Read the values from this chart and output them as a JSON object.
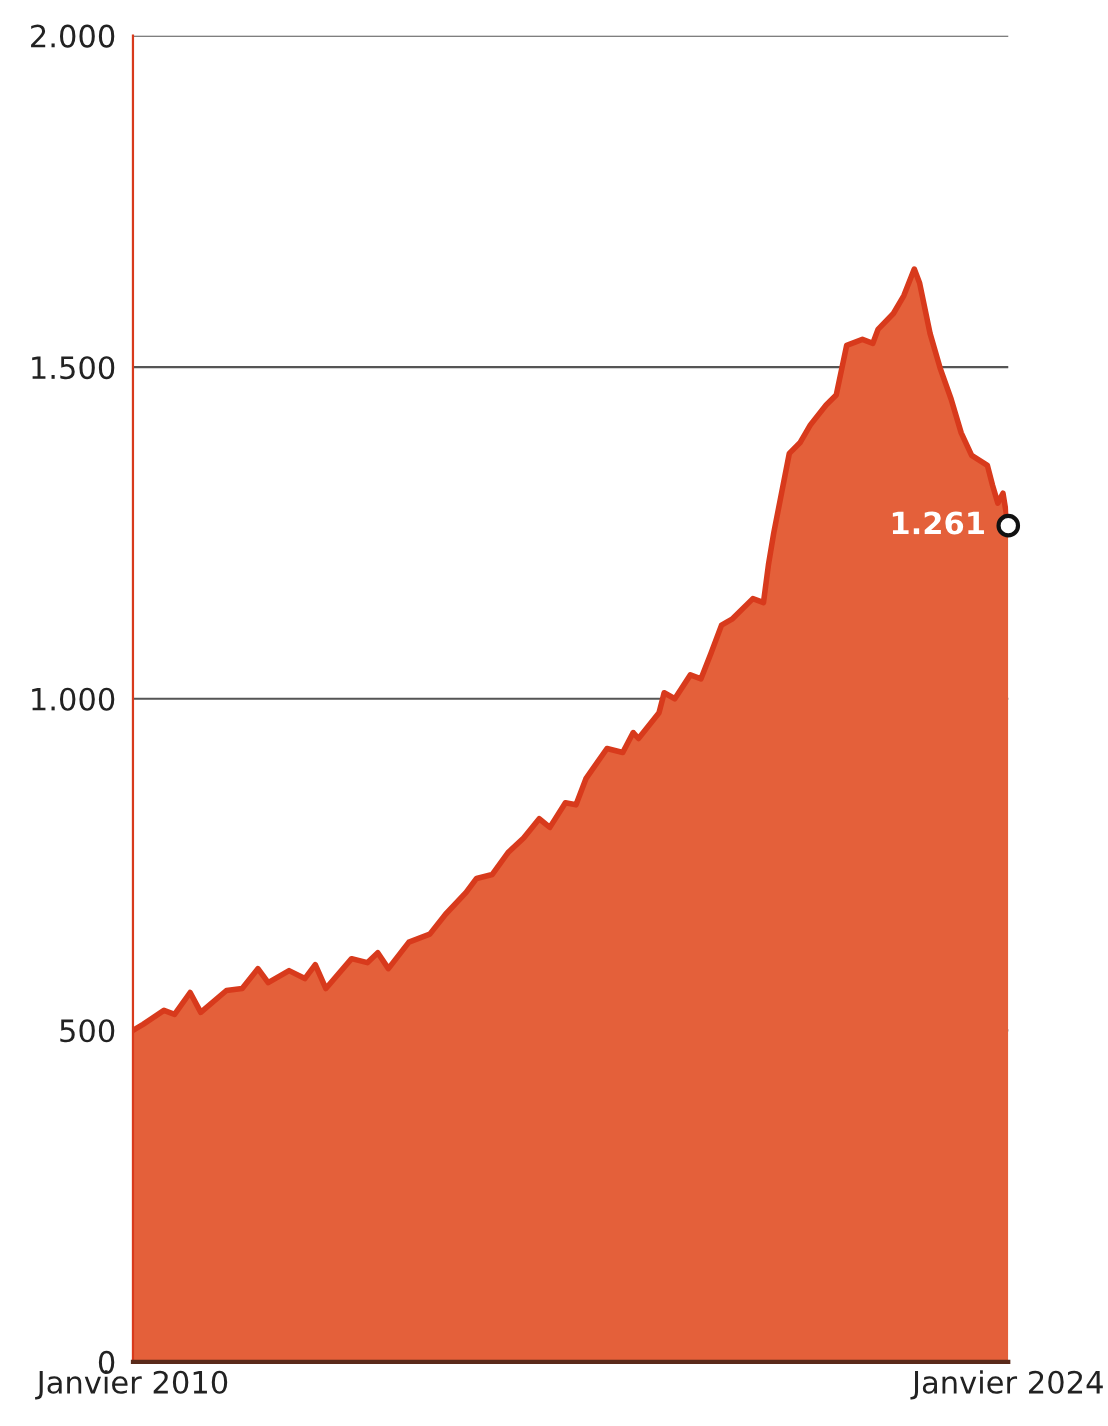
{
  "chart_data": {
    "type": "area",
    "x": [
      "2010-01",
      "2010-03",
      "2010-07",
      "2010-09",
      "2010-12",
      "2011-02",
      "2011-07",
      "2011-10",
      "2012-01",
      "2012-03",
      "2012-07",
      "2012-10",
      "2012-12",
      "2013-02",
      "2013-07",
      "2013-10",
      "2013-12",
      "2014-02",
      "2014-06",
      "2014-10",
      "2015-01",
      "2015-05",
      "2015-07",
      "2015-10",
      "2016-01",
      "2016-04",
      "2016-07",
      "2016-09",
      "2016-12",
      "2017-02",
      "2017-04",
      "2017-08",
      "2017-11",
      "2018-01",
      "2018-02",
      "2018-06",
      "2018-07",
      "2018-09",
      "2018-12",
      "2019-02",
      "2019-04",
      "2019-06",
      "2019-08",
      "2019-12",
      "2020-02",
      "2020-03",
      "2020-04",
      "2020-07",
      "2020-09",
      "2020-11",
      "2021-02",
      "2021-04",
      "2021-06",
      "2021-09",
      "2021-11",
      "2021-12",
      "2022-03",
      "2022-05",
      "2022-07",
      "2022-08",
      "2022-10",
      "2022-12",
      "2023-02",
      "2023-04",
      "2023-06",
      "2023-09",
      "2023-10",
      "2023-11",
      "2023-12",
      "2024-01"
    ],
    "series": [
      {
        "color": "#e4603a",
        "values": [
          500,
          509,
          530,
          524,
          557,
          527,
          560,
          563,
          593,
          572,
          590,
          578,
          599,
          563,
          608,
          602,
          617,
          593,
          633,
          645,
          675,
          708,
          729,
          735,
          768,
          790,
          819,
          806,
          843,
          840,
          880,
          925,
          919,
          949,
          940,
          979,
          1009,
          1000,
          1036,
          1030,
          1069,
          1111,
          1120,
          1151,
          1145,
          1202,
          1250,
          1370,
          1386,
          1413,
          1443,
          1458,
          1533,
          1542,
          1536,
          1557,
          1581,
          1608,
          1648,
          1627,
          1551,
          1497,
          1452,
          1401,
          1367,
          1352,
          1322,
          1295,
          1310,
          1261
        ]
      }
    ],
    "xlim": [
      "2010-01",
      "2024-01"
    ],
    "xticks": [
      {
        "value": "2010-01",
        "label": "Janvier 2010"
      },
      {
        "value": "2024-01",
        "label": "Janvier 2024"
      }
    ],
    "ylim": [
      0,
      2000
    ],
    "yticks": [
      0,
      500,
      {
        "value": 1000,
        "label": "1.000"
      },
      {
        "value": 1500,
        "label": "1.500"
      },
      {
        "value": 2000,
        "label": "2.000"
      }
    ],
    "grid": "y",
    "annotations": [
      {
        "text": "1.261",
        "x": "2024-01",
        "y": 1261
      }
    ]
  }
}
